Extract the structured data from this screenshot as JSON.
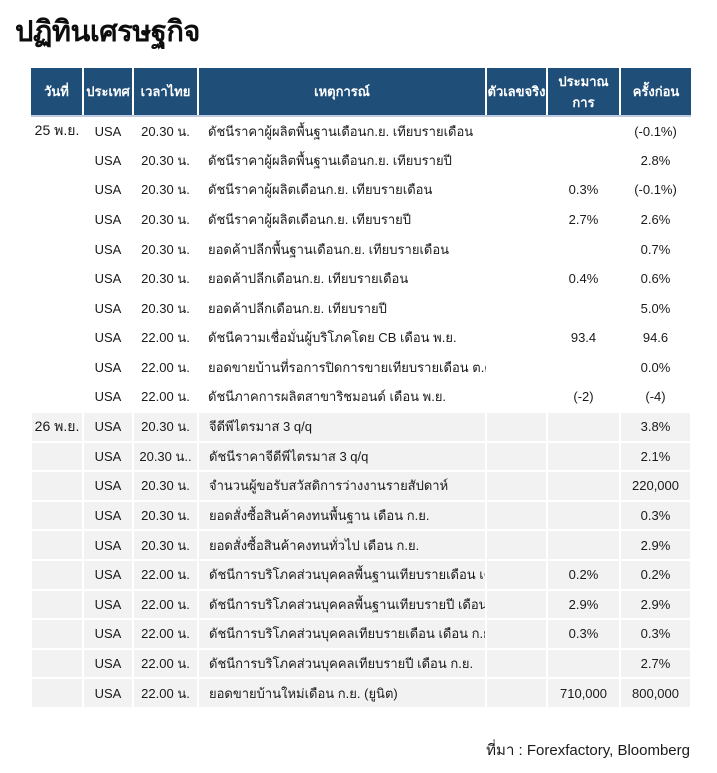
{
  "page": {
    "title": "ปฏิทินเศรษฐกิจ",
    "source_note": "ที่มา : Forexfactory, Bloomberg"
  },
  "colors": {
    "header_bg": "#1f4e79",
    "header_text": "#ffffff",
    "shaded_row_bg": "#f2f2f2",
    "header_bottom_border": "#bfcade",
    "body_text": "#1a1a1a"
  },
  "table": {
    "columns": [
      {
        "key": "date",
        "label": "วันที่"
      },
      {
        "key": "country",
        "label": "ประเทศ"
      },
      {
        "key": "time",
        "label": "เวลาไทย"
      },
      {
        "key": "event",
        "label": "เหตุการณ์"
      },
      {
        "key": "actual",
        "label": "ตัวเลขจริง"
      },
      {
        "key": "estimate",
        "label": "ประมาณการ"
      },
      {
        "key": "previous",
        "label": "ครั้งก่อน"
      }
    ],
    "rows": [
      {
        "date": "25 พ.ย.",
        "country": "USA",
        "time": "20.30 น.",
        "event": "ดัชนีราคาผู้ผลิตพื้นฐานเดือนก.ย. เทียบรายเดือน",
        "actual": "",
        "estimate": "",
        "previous": "(-0.1%)",
        "shaded": false
      },
      {
        "date": "",
        "country": "USA",
        "time": "20.30 น.",
        "event": "ดัชนีราคาผู้ผลิตพื้นฐานเดือนก.ย. เทียบรายปี",
        "actual": "",
        "estimate": "",
        "previous": "2.8%",
        "shaded": false
      },
      {
        "date": "",
        "country": "USA",
        "time": "20.30 น.",
        "event": "ดัชนีราคาผู้ผลิตเดือนก.ย. เทียบรายเดือน",
        "actual": "",
        "estimate": "0.3%",
        "previous": "(-0.1%)",
        "shaded": false
      },
      {
        "date": "",
        "country": "USA",
        "time": "20.30 น.",
        "event": "ดัชนีราคาผู้ผลิตเดือนก.ย. เทียบรายปี",
        "actual": "",
        "estimate": "2.7%",
        "previous": "2.6%",
        "shaded": false
      },
      {
        "date": "",
        "country": "USA",
        "time": "20.30 น.",
        "event": "ยอดค้าปลีกพื้นฐานเดือนก.ย. เทียบรายเดือน",
        "actual": "",
        "estimate": "",
        "previous": "0.7%",
        "shaded": false
      },
      {
        "date": "",
        "country": "USA",
        "time": "20.30 น.",
        "event": "ยอดค้าปลีกเดือนก.ย. เทียบรายเดือน",
        "actual": "",
        "estimate": "0.4%",
        "previous": "0.6%",
        "shaded": false
      },
      {
        "date": "",
        "country": "USA",
        "time": "20.30 น.",
        "event": "ยอดค้าปลีกเดือนก.ย. เทียบรายปี",
        "actual": "",
        "estimate": "",
        "previous": "5.0%",
        "shaded": false
      },
      {
        "date": "",
        "country": "USA",
        "time": "22.00 น.",
        "event": "ดัชนีความเชื่อมั่นผู้บริโภคโดย CB เดือน พ.ย.",
        "actual": "",
        "estimate": "93.4",
        "previous": "94.6",
        "shaded": false
      },
      {
        "date": "",
        "country": "USA",
        "time": "22.00 น.",
        "event": "ยอดขายบ้านที่รอการปิดการขายเทียบรายเดือน ต.ค.",
        "actual": "",
        "estimate": "",
        "previous": "0.0%",
        "shaded": false
      },
      {
        "date": "",
        "country": "USA",
        "time": "22.00 น.",
        "event": "ดัชนีภาคการผลิตสาขาริชมอนด์ เดือน พ.ย.",
        "actual": "",
        "estimate": "(-2)",
        "previous": "(-4)",
        "shaded": false
      },
      {
        "date": "26 พ.ย.",
        "country": "USA",
        "time": "20.30 น.",
        "event": "จีดีพีไตรมาส 3  q/q",
        "actual": "",
        "estimate": "",
        "previous": "3.8%",
        "shaded": true
      },
      {
        "date": "",
        "country": "USA",
        "time": "20.30 น..",
        "event": "ดัชนีราคาจีดีพีไตรมาส 3 q/q",
        "actual": "",
        "estimate": "",
        "previous": "2.1%",
        "shaded": true
      },
      {
        "date": "",
        "country": "USA",
        "time": "20.30 น.",
        "event": "จำนวนผู้ขอรับสวัสดิการว่างงานรายสัปดาห์",
        "actual": "",
        "estimate": "",
        "previous": "220,000",
        "shaded": true
      },
      {
        "date": "",
        "country": "USA",
        "time": "20.30 น.",
        "event": "ยอดสั่งซื้อสินค้าคงทนพื้นฐาน เดือน ก.ย.",
        "actual": "",
        "estimate": "",
        "previous": "0.3%",
        "shaded": true
      },
      {
        "date": "",
        "country": "USA",
        "time": "20.30 น.",
        "event": "ยอดสั่งซื้อสินค้าคงทนทั่วไป เดือน ก.ย.",
        "actual": "",
        "estimate": "",
        "previous": "2.9%",
        "shaded": true
      },
      {
        "date": "",
        "country": "USA",
        "time": "22.00 น.",
        "event": "ดัชนีการบริโภคส่วนบุคคลพื้นฐานเทียบรายเดือน เดือน ก.ย.",
        "actual": "",
        "estimate": "0.2%",
        "previous": "0.2%",
        "shaded": true
      },
      {
        "date": "",
        "country": "USA",
        "time": "22.00 น.",
        "event": "ดัชนีการบริโภคส่วนบุคคลพื้นฐานเทียบรายปี เดือน ก.ย.",
        "actual": "",
        "estimate": "2.9%",
        "previous": "2.9%",
        "shaded": true
      },
      {
        "date": "",
        "country": "USA",
        "time": "22.00 น.",
        "event": "ดัชนีการบริโภคส่วนบุคคลเทียบรายเดือน เดือน ก.ย.",
        "actual": "",
        "estimate": "0.3%",
        "previous": "0.3%",
        "shaded": true
      },
      {
        "date": "",
        "country": "USA",
        "time": "22.00 น.",
        "event": "ดัชนีการบริโภคส่วนบุคคลเทียบรายปี เดือน ก.ย.",
        "actual": "",
        "estimate": "",
        "previous": "2.7%",
        "shaded": true
      },
      {
        "date": "",
        "country": "USA",
        "time": "22.00 น.",
        "event": "ยอดขายบ้านใหม่เดือน ก.ย. (ยูนิต)",
        "actual": "",
        "estimate": "710,000",
        "previous": "800,000",
        "shaded": true
      }
    ]
  }
}
